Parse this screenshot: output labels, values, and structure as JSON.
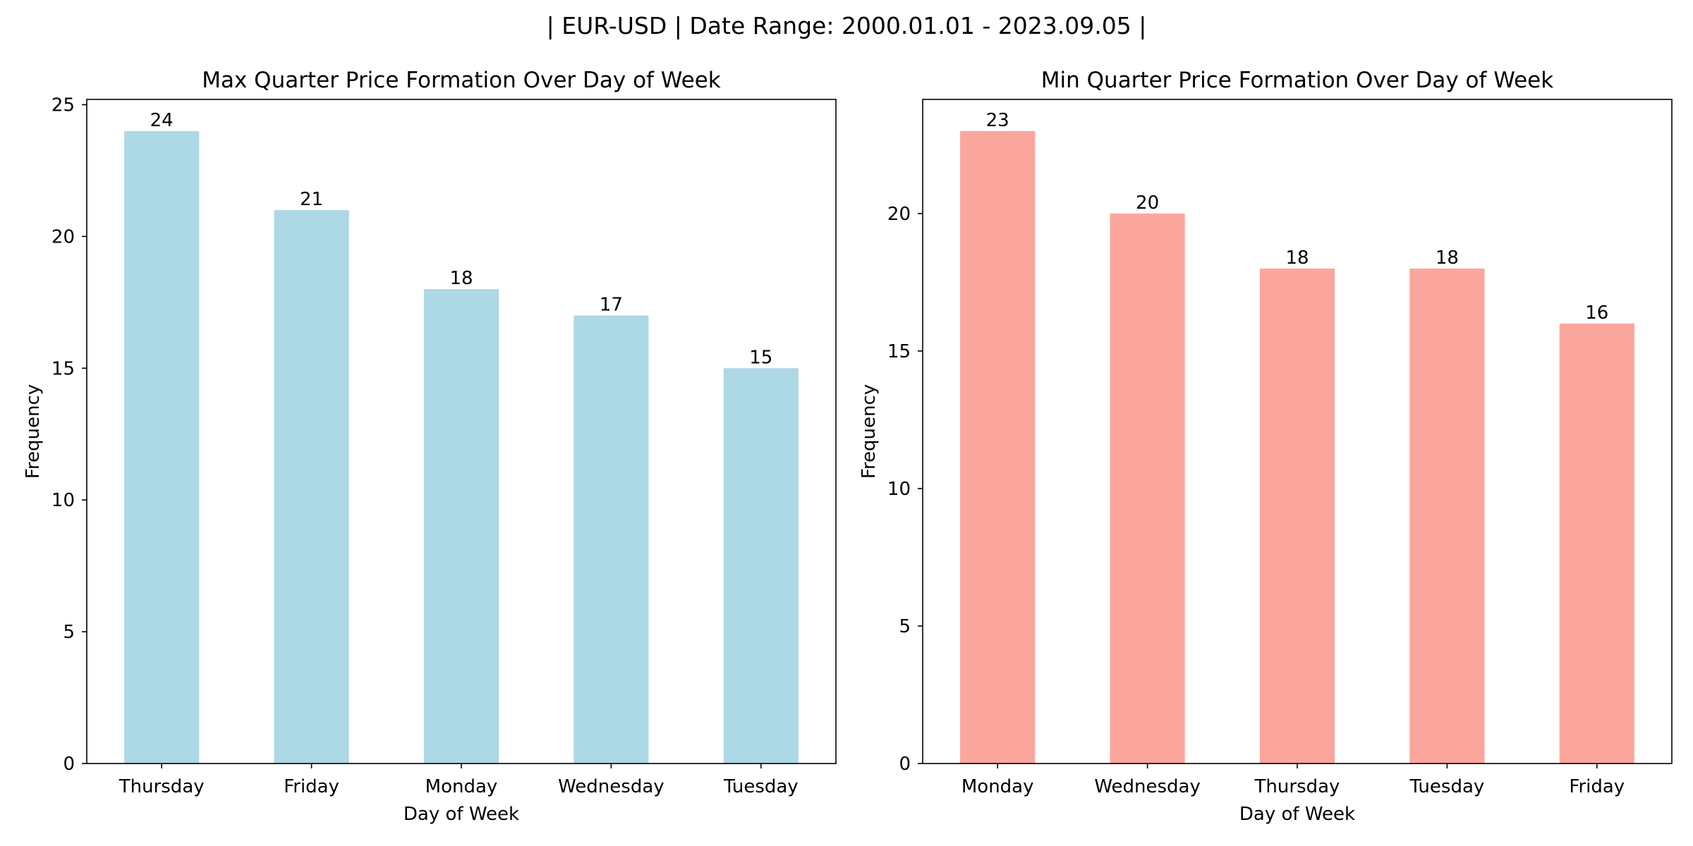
{
  "figure": {
    "suptitle": "| EUR-USD | Date Range: 2000.01.01 - 2023.09.05 |"
  },
  "chart_data": [
    {
      "type": "bar",
      "title": "Max Quarter Price Formation Over Day of Week",
      "xlabel": "Day of Week",
      "ylabel": "Frequency",
      "categories": [
        "Thursday",
        "Friday",
        "Monday",
        "Wednesday",
        "Tuesday"
      ],
      "values": [
        24,
        21,
        18,
        17,
        15
      ],
      "ylim": [
        0,
        25.2
      ],
      "yticks": [
        0,
        5,
        10,
        15,
        20,
        25
      ],
      "color": "#add8e6",
      "grid": false,
      "data_labels": true
    },
    {
      "type": "bar",
      "title": "Min Quarter Price Formation Over Day of Week",
      "xlabel": "Day of Week",
      "ylabel": "Frequency",
      "categories": [
        "Monday",
        "Wednesday",
        "Thursday",
        "Tuesday",
        "Friday"
      ],
      "values": [
        23,
        20,
        18,
        18,
        16
      ],
      "ylim": [
        0,
        24.15
      ],
      "yticks": [
        0,
        5,
        10,
        15,
        20
      ],
      "color": "#fa8072",
      "opacity": 0.7,
      "grid": false,
      "data_labels": true
    }
  ]
}
